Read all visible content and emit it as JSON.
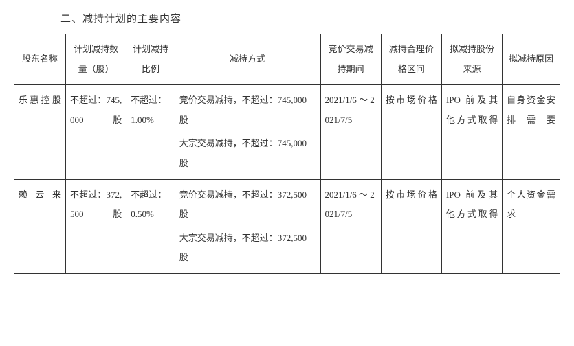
{
  "title": "二、减持计划的主要内容",
  "headers": {
    "name": "股东名称",
    "qty": "计划减持数量（股）",
    "ratio": "计划减持比例",
    "method": "减持方式",
    "period": "竞价交易减持期间",
    "price": "减持合理价格区间",
    "source": "拟减持股份来源",
    "reason": "拟减持原因"
  },
  "rows": [
    {
      "name": "乐惠控股",
      "qty": "不超过：745,000 股",
      "ratio": "不超过：1.00%",
      "method_line1": "竞价交易减持，不超过：745,000 股",
      "method_line2": "大宗交易减持，不超过：745,000 股",
      "period": "2021/1/6 ～ 2021/7/5",
      "price": "按市场价格",
      "source": "IPO 前及其他方式取得",
      "reason": "自身资金安排需要"
    },
    {
      "name": "赖云来",
      "qty": "不超过：372,500 股",
      "ratio": "不超过：0.50%",
      "method_line1": "竞价交易减持，不超过：372,500 股",
      "method_line2": "大宗交易减持，不超过：372,500 股",
      "period": "2021/1/6 ～ 2021/7/5",
      "price": "按市场价格",
      "source": "IPO 前及其他方式取得",
      "reason": "个人资金需求"
    }
  ]
}
